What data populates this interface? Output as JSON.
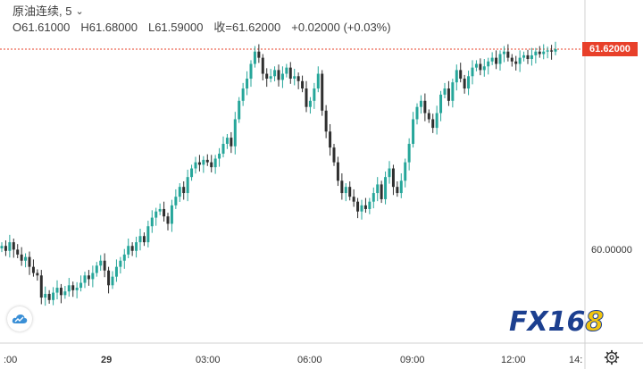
{
  "legend": {
    "symbol": "原油连续",
    "interval": "5",
    "open": "O61.61000",
    "high": "H61.68000",
    "low": "L61.59000",
    "close": "收=61.62000",
    "change": "+0.02000 (+0.03%)"
  },
  "colors": {
    "up": "#26a69a",
    "down": "#2f2f2f",
    "price_line": "#e8402a",
    "accent": "#1c3f8f"
  },
  "price_tag": "61.62000",
  "y_axis": {
    "labels": [
      "61.62000",
      "60.00000"
    ]
  },
  "x_axis": {
    "labels": [
      ":00",
      "29",
      "03:00",
      "06:00",
      "09:00",
      "12:00",
      "14:"
    ]
  },
  "logo": {
    "main": "FX16",
    "last": "8"
  },
  "chart_data": {
    "type": "candlestick",
    "title": "原油连续, 5",
    "ylim": [
      59.5,
      61.75
    ],
    "last_price": 61.62,
    "x_ticks": [
      ":00",
      "29",
      "03:00",
      "06:00",
      "09:00",
      "12:00",
      "14:"
    ],
    "closes": [
      60.02,
      59.98,
      60.05,
      59.99,
      59.95,
      59.9,
      59.93,
      59.85,
      59.8,
      59.78,
      59.6,
      59.63,
      59.58,
      59.64,
      59.68,
      59.62,
      59.65,
      59.7,
      59.66,
      59.68,
      59.72,
      59.78,
      59.75,
      59.8,
      59.86,
      59.9,
      59.82,
      59.7,
      59.77,
      59.85,
      59.9,
      59.95,
      60.02,
      59.98,
      60.05,
      60.1,
      60.05,
      60.18,
      60.25,
      60.3,
      60.32,
      60.26,
      60.2,
      60.35,
      60.42,
      60.5,
      60.45,
      60.58,
      60.65,
      60.7,
      60.68,
      60.72,
      60.7,
      60.66,
      60.73,
      60.77,
      60.85,
      60.9,
      60.83,
      61.05,
      61.2,
      61.3,
      61.38,
      61.5,
      61.6,
      61.55,
      61.42,
      61.38,
      61.4,
      61.45,
      61.37,
      61.42,
      61.47,
      61.38,
      61.4,
      61.36,
      61.3,
      61.15,
      61.2,
      61.3,
      61.42,
      61.12,
      60.95,
      60.82,
      60.7,
      60.55,
      60.45,
      60.5,
      60.42,
      60.38,
      60.3,
      60.35,
      60.32,
      60.38,
      60.45,
      60.52,
      60.4,
      60.58,
      60.65,
      60.5,
      60.45,
      60.55,
      60.7,
      60.85,
      61.05,
      61.15,
      61.2,
      61.1,
      61.05,
      60.98,
      61.1,
      61.25,
      61.3,
      61.2,
      61.35,
      61.45,
      61.38,
      61.3,
      61.4,
      61.47,
      61.5,
      61.45,
      61.48,
      61.52,
      61.55,
      61.5,
      61.58,
      61.6,
      61.55,
      61.52,
      61.5,
      61.55,
      61.57,
      61.54,
      61.57,
      61.6,
      61.58,
      61.6,
      61.61,
      61.6,
      61.62
    ]
  }
}
